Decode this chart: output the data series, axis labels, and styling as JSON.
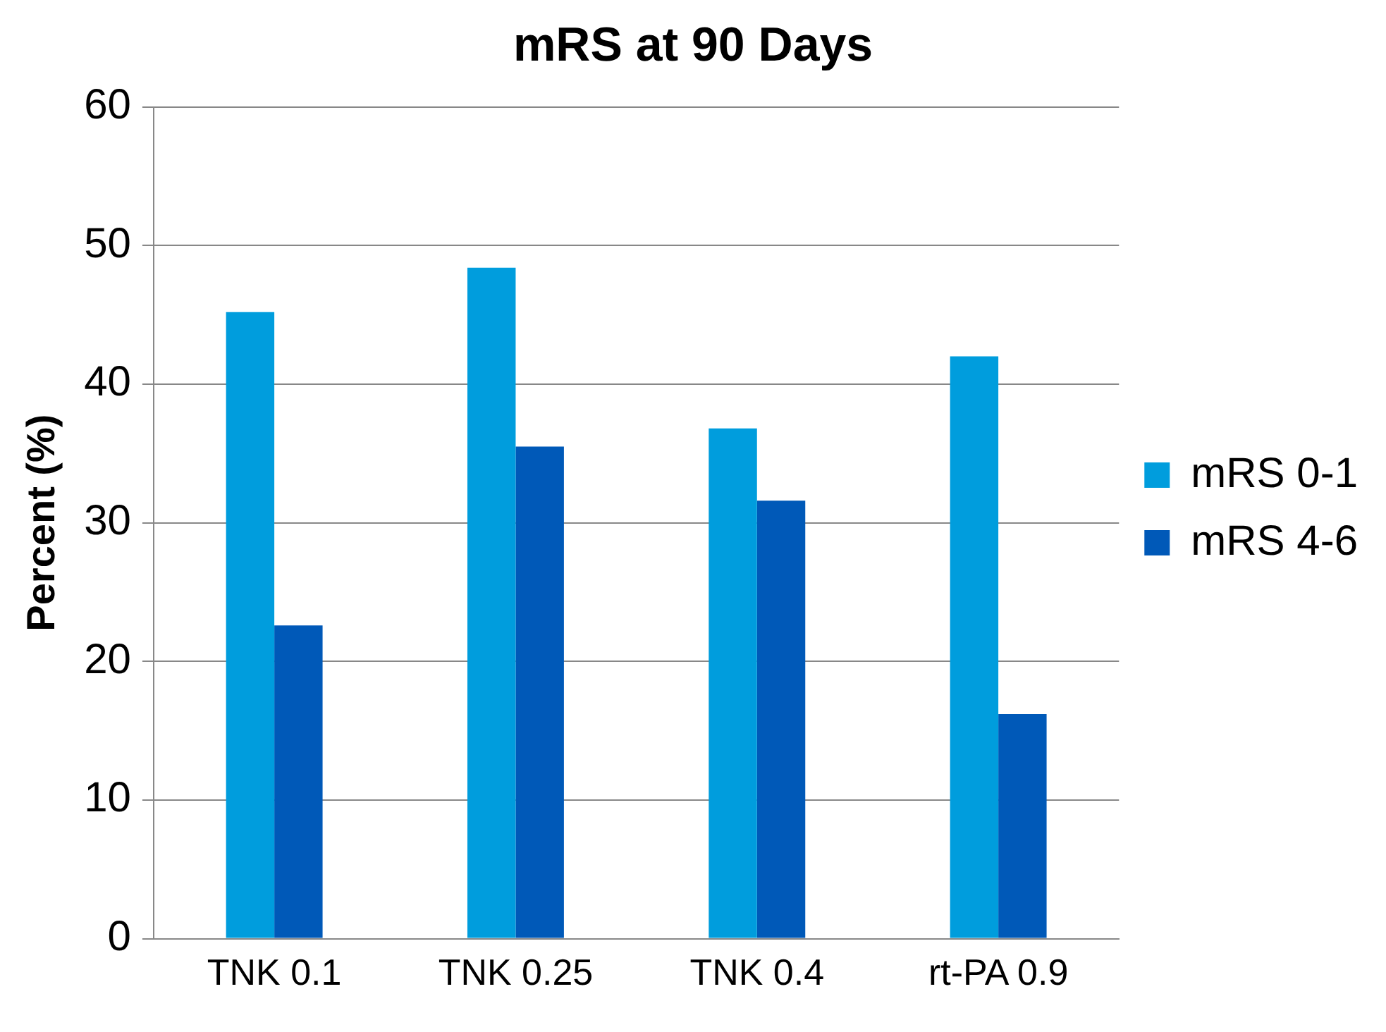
{
  "chart_data": {
    "type": "bar",
    "title": "mRS at 90 Days",
    "ylabel": "Percent (%)",
    "categories": [
      "TNK 0.1",
      "TNK 0.25",
      "TNK 0.4",
      "rt-PA 0.9"
    ],
    "series": [
      {
        "name": "mRS 0-1",
        "color": "#009ddd",
        "values": [
          45.2,
          48.4,
          36.8,
          42.0
        ]
      },
      {
        "name": "mRS 4-6",
        "color": "#0059b8",
        "values": [
          22.6,
          35.5,
          31.6,
          16.2
        ]
      }
    ],
    "ylim": [
      0,
      60
    ],
    "yticks": [
      0,
      10,
      20,
      30,
      40,
      50,
      60
    ],
    "grid": "y",
    "legend": "right"
  }
}
